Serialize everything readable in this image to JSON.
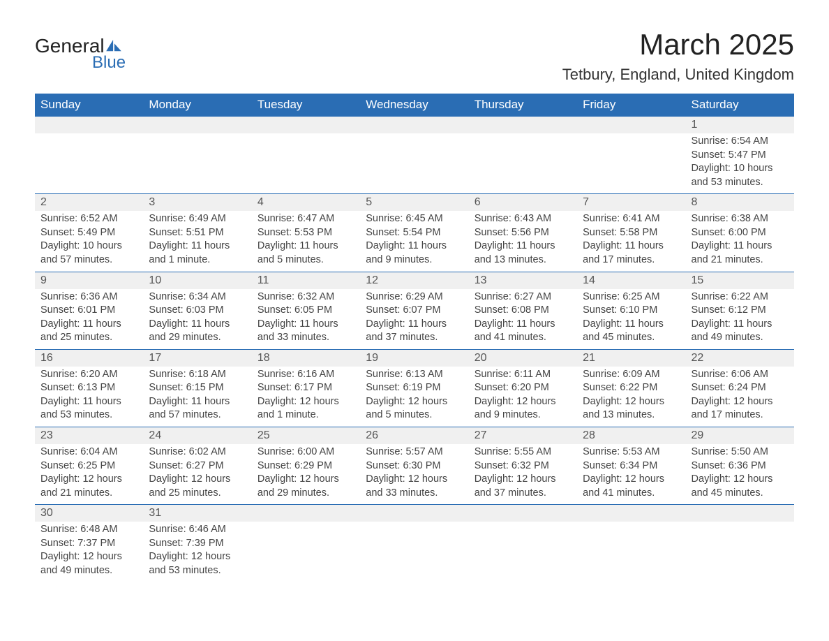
{
  "brand": {
    "name_a": "General",
    "name_b": "Blue",
    "accent": "#2a6db4"
  },
  "title": "March 2025",
  "location": "Tetbury, England, United Kingdom",
  "header_bg": "#2a6db4",
  "daynum_bg": "#f0f0f0",
  "border_color": "#2a6db4",
  "text_color": "#444444",
  "weekdays": [
    "Sunday",
    "Monday",
    "Tuesday",
    "Wednesday",
    "Thursday",
    "Friday",
    "Saturday"
  ],
  "weeks": [
    [
      null,
      null,
      null,
      null,
      null,
      null,
      {
        "n": "1",
        "sr": "6:54 AM",
        "ss": "5:47 PM",
        "dl": "10 hours and 53 minutes."
      }
    ],
    [
      {
        "n": "2",
        "sr": "6:52 AM",
        "ss": "5:49 PM",
        "dl": "10 hours and 57 minutes."
      },
      {
        "n": "3",
        "sr": "6:49 AM",
        "ss": "5:51 PM",
        "dl": "11 hours and 1 minute."
      },
      {
        "n": "4",
        "sr": "6:47 AM",
        "ss": "5:53 PM",
        "dl": "11 hours and 5 minutes."
      },
      {
        "n": "5",
        "sr": "6:45 AM",
        "ss": "5:54 PM",
        "dl": "11 hours and 9 minutes."
      },
      {
        "n": "6",
        "sr": "6:43 AM",
        "ss": "5:56 PM",
        "dl": "11 hours and 13 minutes."
      },
      {
        "n": "7",
        "sr": "6:41 AM",
        "ss": "5:58 PM",
        "dl": "11 hours and 17 minutes."
      },
      {
        "n": "8",
        "sr": "6:38 AM",
        "ss": "6:00 PM",
        "dl": "11 hours and 21 minutes."
      }
    ],
    [
      {
        "n": "9",
        "sr": "6:36 AM",
        "ss": "6:01 PM",
        "dl": "11 hours and 25 minutes."
      },
      {
        "n": "10",
        "sr": "6:34 AM",
        "ss": "6:03 PM",
        "dl": "11 hours and 29 minutes."
      },
      {
        "n": "11",
        "sr": "6:32 AM",
        "ss": "6:05 PM",
        "dl": "11 hours and 33 minutes."
      },
      {
        "n": "12",
        "sr": "6:29 AM",
        "ss": "6:07 PM",
        "dl": "11 hours and 37 minutes."
      },
      {
        "n": "13",
        "sr": "6:27 AM",
        "ss": "6:08 PM",
        "dl": "11 hours and 41 minutes."
      },
      {
        "n": "14",
        "sr": "6:25 AM",
        "ss": "6:10 PM",
        "dl": "11 hours and 45 minutes."
      },
      {
        "n": "15",
        "sr": "6:22 AM",
        "ss": "6:12 PM",
        "dl": "11 hours and 49 minutes."
      }
    ],
    [
      {
        "n": "16",
        "sr": "6:20 AM",
        "ss": "6:13 PM",
        "dl": "11 hours and 53 minutes."
      },
      {
        "n": "17",
        "sr": "6:18 AM",
        "ss": "6:15 PM",
        "dl": "11 hours and 57 minutes."
      },
      {
        "n": "18",
        "sr": "6:16 AM",
        "ss": "6:17 PM",
        "dl": "12 hours and 1 minute."
      },
      {
        "n": "19",
        "sr": "6:13 AM",
        "ss": "6:19 PM",
        "dl": "12 hours and 5 minutes."
      },
      {
        "n": "20",
        "sr": "6:11 AM",
        "ss": "6:20 PM",
        "dl": "12 hours and 9 minutes."
      },
      {
        "n": "21",
        "sr": "6:09 AM",
        "ss": "6:22 PM",
        "dl": "12 hours and 13 minutes."
      },
      {
        "n": "22",
        "sr": "6:06 AM",
        "ss": "6:24 PM",
        "dl": "12 hours and 17 minutes."
      }
    ],
    [
      {
        "n": "23",
        "sr": "6:04 AM",
        "ss": "6:25 PM",
        "dl": "12 hours and 21 minutes."
      },
      {
        "n": "24",
        "sr": "6:02 AM",
        "ss": "6:27 PM",
        "dl": "12 hours and 25 minutes."
      },
      {
        "n": "25",
        "sr": "6:00 AM",
        "ss": "6:29 PM",
        "dl": "12 hours and 29 minutes."
      },
      {
        "n": "26",
        "sr": "5:57 AM",
        "ss": "6:30 PM",
        "dl": "12 hours and 33 minutes."
      },
      {
        "n": "27",
        "sr": "5:55 AM",
        "ss": "6:32 PM",
        "dl": "12 hours and 37 minutes."
      },
      {
        "n": "28",
        "sr": "5:53 AM",
        "ss": "6:34 PM",
        "dl": "12 hours and 41 minutes."
      },
      {
        "n": "29",
        "sr": "5:50 AM",
        "ss": "6:36 PM",
        "dl": "12 hours and 45 minutes."
      }
    ],
    [
      {
        "n": "30",
        "sr": "6:48 AM",
        "ss": "7:37 PM",
        "dl": "12 hours and 49 minutes."
      },
      {
        "n": "31",
        "sr": "6:46 AM",
        "ss": "7:39 PM",
        "dl": "12 hours and 53 minutes."
      },
      null,
      null,
      null,
      null,
      null
    ]
  ],
  "labels": {
    "sunrise": "Sunrise: ",
    "sunset": "Sunset: ",
    "daylight": "Daylight: "
  }
}
